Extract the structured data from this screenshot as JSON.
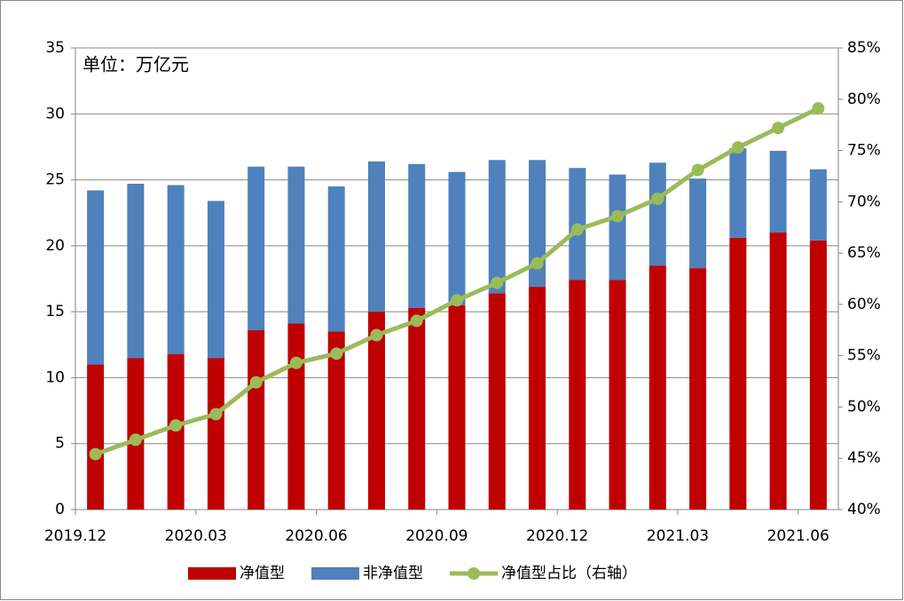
{
  "chart_data": {
    "type": "bar",
    "annotation": "单位：万亿元",
    "categories": [
      "2019.12",
      null,
      null,
      "2020.03",
      null,
      null,
      "2020.06",
      null,
      null,
      "2020.09",
      null,
      null,
      "2020.12",
      null,
      null,
      "2021.03",
      null,
      null,
      "2021.06"
    ],
    "stacked": true,
    "series": [
      {
        "name": "净值型",
        "color": "#c00000",
        "type": "bar",
        "values": [
          11.0,
          11.5,
          11.8,
          11.5,
          13.6,
          14.1,
          13.5,
          15.0,
          15.3,
          15.5,
          16.4,
          16.9,
          17.4,
          17.4,
          18.5,
          18.3,
          20.6,
          21.0,
          20.4
        ]
      },
      {
        "name": "非净值型",
        "color": "#4f81bd",
        "type": "bar",
        "values": [
          13.2,
          13.2,
          12.8,
          11.9,
          12.4,
          11.9,
          11.0,
          11.4,
          10.9,
          10.1,
          10.1,
          9.6,
          8.5,
          8.0,
          7.8,
          6.8,
          6.8,
          6.2,
          5.4
        ]
      },
      {
        "name": "净值型占比（右轴）",
        "color": "#9bbb59",
        "type": "line",
        "axis": "y2",
        "values": [
          45.4,
          46.8,
          48.2,
          49.3,
          52.4,
          54.3,
          55.2,
          57.0,
          58.4,
          60.4,
          62.1,
          64.0,
          67.3,
          68.6,
          70.3,
          73.1,
          75.3,
          77.2,
          79.1
        ]
      }
    ],
    "ylim": [
      0,
      35
    ],
    "yticks": [
      0,
      5,
      10,
      15,
      20,
      25,
      30,
      35
    ],
    "y2lim": [
      40,
      85
    ],
    "y2ticks": [
      {
        "value": 40,
        "label": "40%"
      },
      {
        "value": 45,
        "label": "45%"
      },
      {
        "value": 50,
        "label": "50%"
      },
      {
        "value": 55,
        "label": "55%"
      },
      {
        "value": 60,
        "label": "60%"
      },
      {
        "value": 65,
        "label": "65%"
      },
      {
        "value": 70,
        "label": "70%"
      },
      {
        "value": 75,
        "label": "75%"
      },
      {
        "value": 80,
        "label": "80%"
      },
      {
        "value": 85,
        "label": "85%"
      }
    ],
    "grid": true,
    "legend": "bottom"
  }
}
